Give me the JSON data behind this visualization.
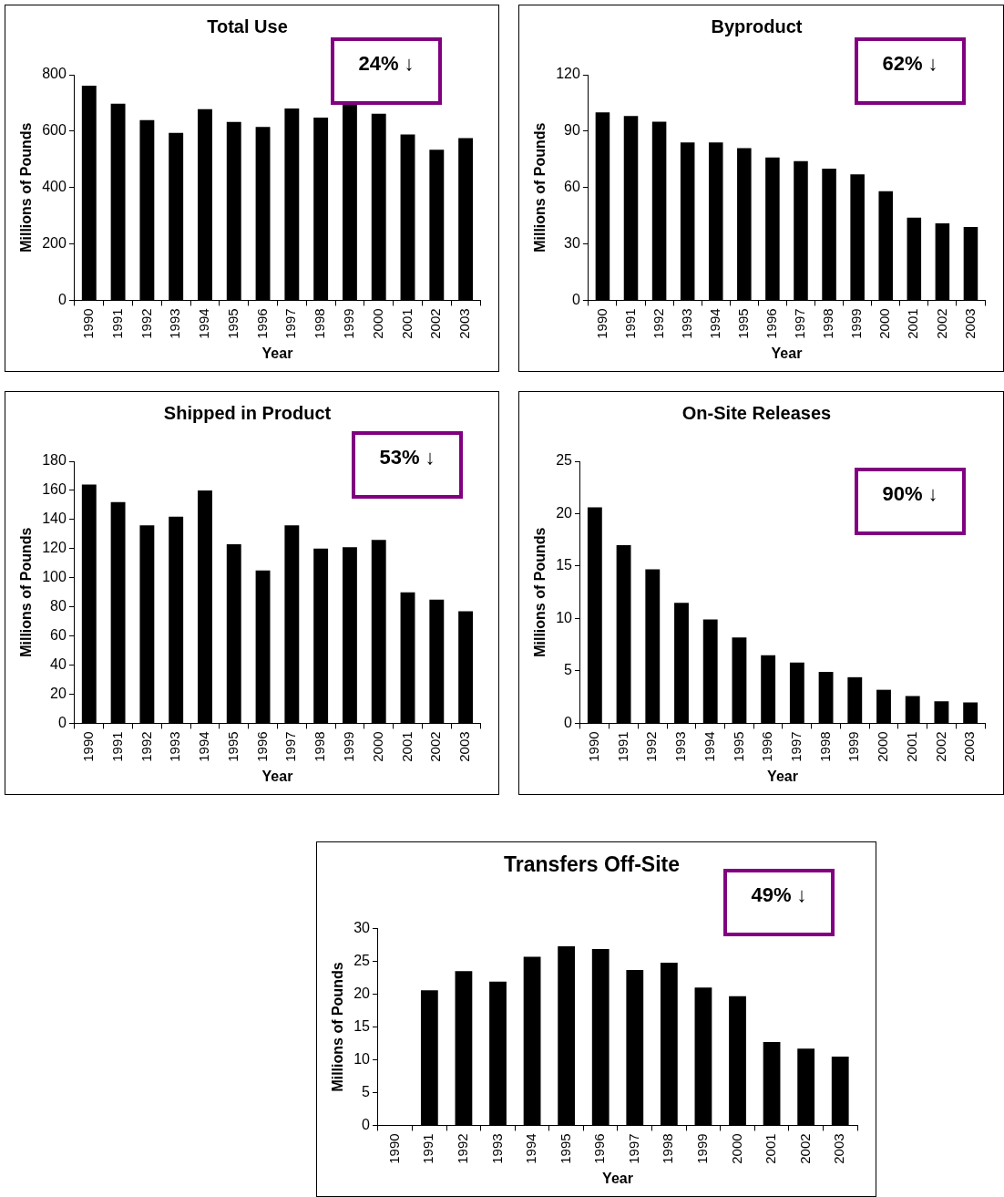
{
  "chart_data": [
    {
      "type": "bar",
      "title": "Total Use",
      "xlabel": "Year",
      "ylabel": "Millions of Pounds",
      "categories": [
        "1990",
        "1991",
        "1992",
        "1993",
        "1994",
        "1995",
        "1996",
        "1997",
        "1998",
        "1999",
        "2000",
        "2001",
        "2002",
        "2003"
      ],
      "values": [
        761,
        697,
        639,
        594,
        678,
        633,
        615,
        680,
        648,
        700,
        662,
        588,
        534,
        575
      ],
      "color": "#000000",
      "ylim": [
        0,
        800
      ],
      "yticks": [
        0,
        200,
        400,
        600,
        800
      ],
      "grid": false,
      "annotations": [
        "24% ↓"
      ]
    },
    {
      "type": "bar",
      "title": "Byproduct",
      "xlabel": "Year",
      "ylabel": "Millions of Pounds",
      "categories": [
        "1990",
        "1991",
        "1992",
        "1993",
        "1994",
        "1995",
        "1996",
        "1997",
        "1998",
        "1999",
        "2000",
        "2001",
        "2002",
        "2003"
      ],
      "values": [
        100,
        98,
        95,
        84,
        84,
        81,
        76,
        74,
        70,
        67,
        58,
        44,
        41,
        39
      ],
      "color": "#000000",
      "ylim": [
        0,
        120
      ],
      "yticks": [
        0,
        30,
        60,
        90,
        120
      ],
      "grid": false,
      "annotations": [
        "62% ↓"
      ]
    },
    {
      "type": "bar",
      "title": "Shipped in Product",
      "xlabel": "Year",
      "ylabel": "Millions of Pounds",
      "categories": [
        "1990",
        "1991",
        "1992",
        "1993",
        "1994",
        "1995",
        "1996",
        "1997",
        "1998",
        "1999",
        "2000",
        "2001",
        "2002",
        "2003"
      ],
      "values": [
        164,
        152,
        136,
        142,
        160,
        123,
        105,
        136,
        120,
        121,
        126,
        90,
        85,
        77
      ],
      "color": "#000000",
      "ylim": [
        0,
        180
      ],
      "yticks": [
        0,
        20,
        40,
        60,
        80,
        100,
        120,
        140,
        160,
        180
      ],
      "grid": false,
      "annotations": [
        "53% ↓"
      ]
    },
    {
      "type": "bar",
      "title": "On-Site Releases",
      "xlabel": "Year",
      "ylabel": "Millions of Pounds",
      "categories": [
        "1990",
        "1991",
        "1992",
        "1993",
        "1994",
        "1995",
        "1996",
        "1997",
        "1998",
        "1999",
        "2000",
        "2001",
        "2002",
        "2003"
      ],
      "values": [
        20.6,
        17,
        14.7,
        11.5,
        9.9,
        8.2,
        6.5,
        5.8,
        4.9,
        4.4,
        3.2,
        2.6,
        2.1,
        2
      ],
      "color": "#000000",
      "ylim": [
        0,
        25
      ],
      "yticks": [
        0,
        5,
        10,
        15,
        20,
        25
      ],
      "grid": false,
      "annotations": [
        "90% ↓"
      ]
    },
    {
      "type": "bar",
      "title": "Transfers Off-Site",
      "xlabel": "Year",
      "ylabel": "Millions of Pounds",
      "categories": [
        "1990",
        "1991",
        "1992",
        "1993",
        "1994",
        "1995",
        "1996",
        "1997",
        "1998",
        "1999",
        "2000",
        "2001",
        "2002",
        "2003"
      ],
      "values": [
        null,
        20.6,
        23.5,
        21.9,
        25.7,
        27.3,
        26.9,
        23.7,
        24.8,
        21,
        19.7,
        12.7,
        11.7,
        10.5
      ],
      "color": "#000000",
      "ylim": [
        0,
        30
      ],
      "yticks": [
        0,
        5,
        10,
        15,
        20,
        25,
        30
      ],
      "grid": false,
      "annotations": [
        "49% ↓"
      ]
    }
  ]
}
